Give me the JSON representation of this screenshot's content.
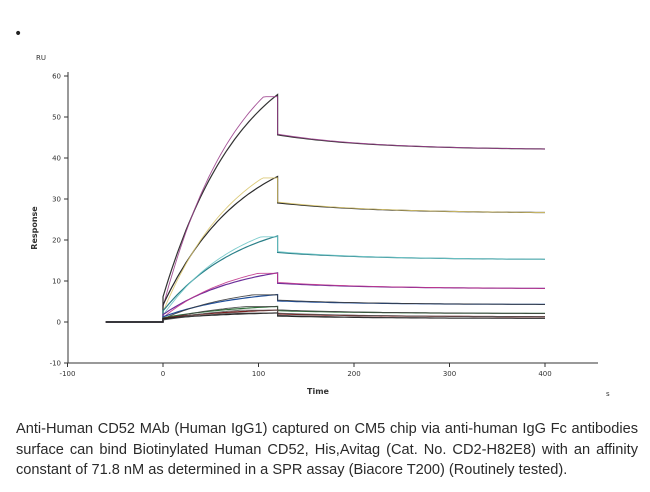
{
  "bullet": "•",
  "caption": "Anti-Human CD52 MAb (Human IgG1) captured on CM5 chip via anti-human IgG Fc antibodies surface can bind Biotinylated Human CD52, His,Avitag (Cat. No. CD2-H82E8) with an affinity constant of 71.8 nM as determined in a SPR assay (Biacore T200) (Routinely tested).",
  "chart_data": {
    "type": "line",
    "xlabel": "Time",
    "x_unit": "s",
    "ylabel": "Response",
    "y_unit": "RU",
    "xlim": [
      -110,
      420
    ],
    "ylim": [
      -10,
      60
    ],
    "x_ticks": [
      -100,
      0,
      100,
      200,
      300,
      400
    ],
    "y_ticks": [
      -10,
      0,
      10,
      20,
      30,
      40,
      50,
      60
    ],
    "grid": false,
    "association_start": 0,
    "dissociation_start": 120,
    "end": 400,
    "baseline_start": -60,
    "series": [
      {
        "plateau": 55.5,
        "end": 42.2,
        "color": "#333333",
        "fit_color": "#9b3f8c"
      },
      {
        "plateau": 35.5,
        "end": 26.7,
        "color": "#2b2b2b",
        "fit_color": "#d8c46a"
      },
      {
        "plateau": 21.0,
        "end": 15.3,
        "color": "#2a7f88",
        "fit_color": "#6fc6c8"
      },
      {
        "plateau": 12.0,
        "end": 8.2,
        "color": "#6b2f9a",
        "fit_color": "#c2368c"
      },
      {
        "plateau": 6.7,
        "end": 4.3,
        "color": "#1f4e9a",
        "fit_color": "#3a3a3a"
      },
      {
        "plateau": 3.8,
        "end": 2.1,
        "color": "#2f6f3a",
        "fit_color": "#444444"
      },
      {
        "plateau": 2.9,
        "end": 1.3,
        "color": "#7a1f1f",
        "fit_color": "#555555"
      },
      {
        "plateau": 2.2,
        "end": 0.9,
        "color": "#222222",
        "fit_color": "#444444"
      }
    ]
  }
}
